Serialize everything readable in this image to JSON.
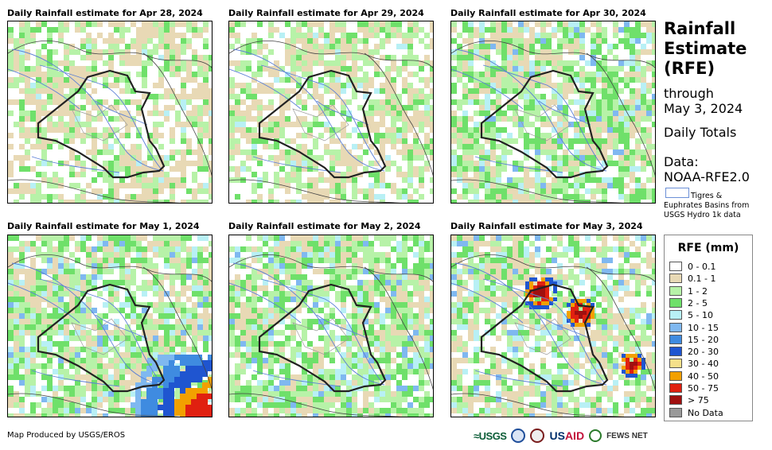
{
  "panels": [
    {
      "title": "Daily Rainfall estimate for Apr 28, 2024",
      "rain": "light"
    },
    {
      "title": "Daily Rainfall estimate for Apr 29, 2024",
      "rain": "light"
    },
    {
      "title": "Daily Rainfall estimate for Apr 30, 2024",
      "rain": "moderate"
    },
    {
      "title": "Daily Rainfall estimate for May 1, 2024",
      "rain": "moderate-southeast-heavy"
    },
    {
      "title": "Daily Rainfall estimate for May 2, 2024",
      "rain": "moderate"
    },
    {
      "title": "Daily Rainfall estimate for May 3, 2024",
      "rain": "heavy"
    }
  ],
  "side": {
    "title_line1": "Rainfall",
    "title_line2": "Estimate",
    "title_line3": "(RFE)",
    "through": "through",
    "date": "May 3, 2024",
    "totals": "Daily Totals",
    "data_label": "Data:",
    "data_source": "NOAA-RFE2.0",
    "basin_line1": "Tigres &",
    "basin_line2": "Euphrates Basins from",
    "basin_line3": "USGS Hydro 1k data"
  },
  "legend": {
    "title": "RFE (mm)",
    "items": [
      {
        "label": "0 - 0.1",
        "color": "#ffffff"
      },
      {
        "label": "0.1 - 1",
        "color": "#e8d9b5"
      },
      {
        "label": "1 - 2",
        "color": "#b7f2a8"
      },
      {
        "label": "2 - 5",
        "color": "#6fe06a"
      },
      {
        "label": "5 - 10",
        "color": "#b8f0f5"
      },
      {
        "label": "10 - 15",
        "color": "#7fb8f0"
      },
      {
        "label": "15 - 20",
        "color": "#3f8be0"
      },
      {
        "label": "20 - 30",
        "color": "#1f55d0"
      },
      {
        "label": "30 - 40",
        "color": "#f5e08a"
      },
      {
        "label": "40 - 50",
        "color": "#f2a000"
      },
      {
        "label": "50 - 75",
        "color": "#e02010"
      },
      {
        "label": "> 75",
        "color": "#a01010"
      },
      {
        "label": "No Data",
        "color": "#999999"
      }
    ]
  },
  "footer": "Map Produced by USGS/EROS",
  "logos": {
    "usgs": "≈USGS",
    "usaid_a": "US",
    "usaid_b": "AID",
    "fews": "FEWS NET"
  }
}
